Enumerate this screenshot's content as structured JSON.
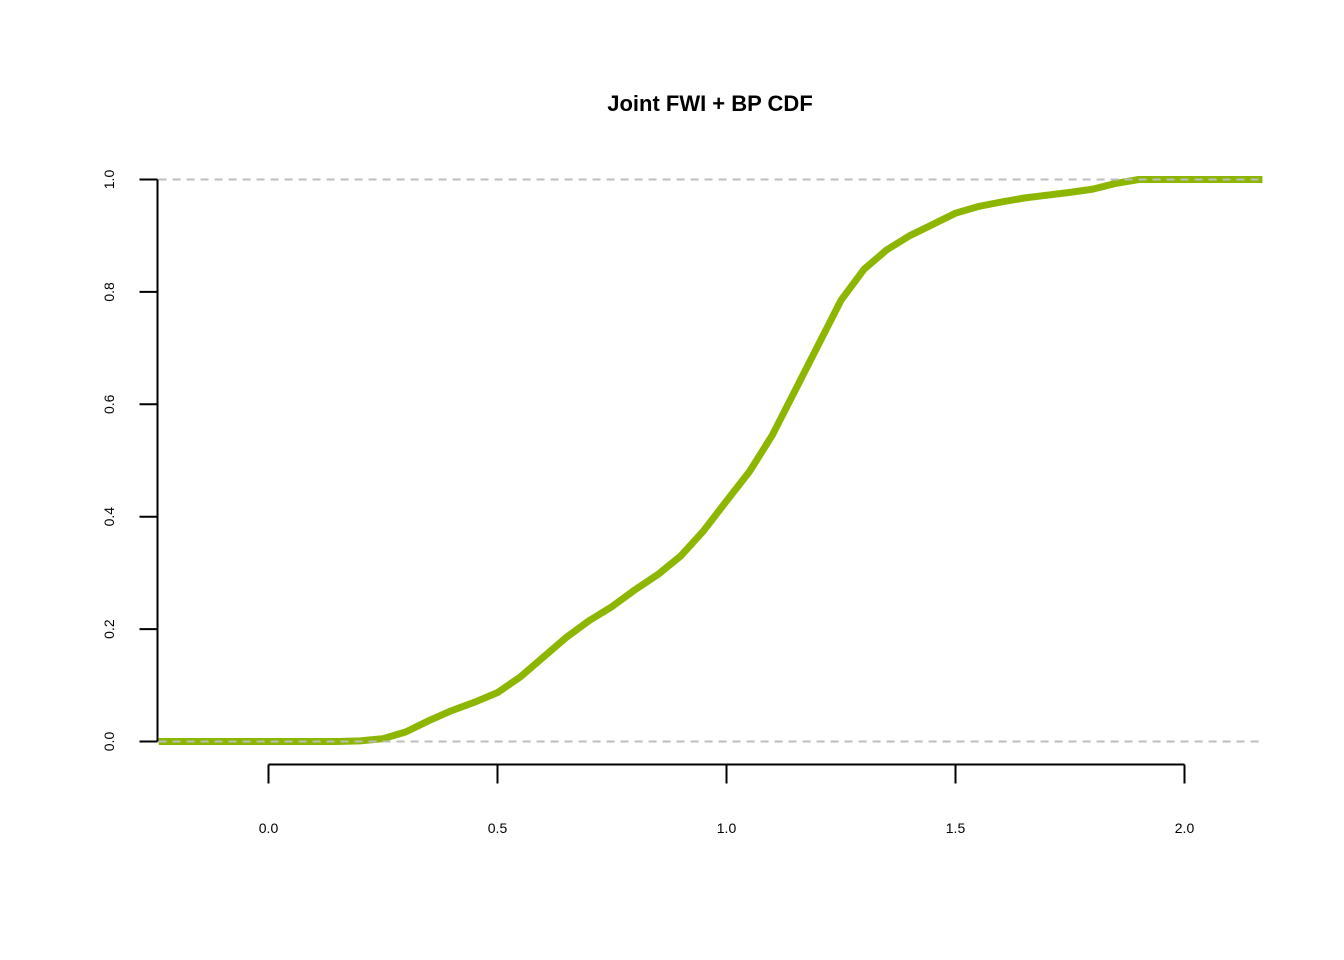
{
  "chart_data": {
    "type": "line",
    "title": "Joint FWI + BP CDF",
    "xlabel": "",
    "ylabel": "",
    "xlim": [
      -0.24,
      2.17
    ],
    "ylim": [
      0.0,
      1.0
    ],
    "x_ticks": [
      "0.0",
      "0.5",
      "1.0",
      "1.5",
      "2.0"
    ],
    "y_ticks": [
      "0.0",
      "0.2",
      "0.4",
      "0.6",
      "0.8",
      "1.0"
    ],
    "reference_lines_y": [
      0.0,
      1.0
    ],
    "grid": false,
    "line_color": "#8db600",
    "reference_color": "#bdbdbd",
    "series": [
      {
        "x": [
          -0.24,
          0.0,
          0.15,
          0.2,
          0.25,
          0.3,
          0.35,
          0.4,
          0.45,
          0.5,
          0.55,
          0.6,
          0.65,
          0.7,
          0.75,
          0.8,
          0.85,
          0.9,
          0.95,
          1.0,
          1.05,
          1.1,
          1.15,
          1.2,
          1.25,
          1.3,
          1.35,
          1.4,
          1.45,
          1.5,
          1.55,
          1.6,
          1.65,
          1.7,
          1.75,
          1.8,
          1.85,
          1.9,
          1.95,
          2.17
        ],
        "y": [
          0.0,
          0.0,
          0.0,
          0.001,
          0.005,
          0.017,
          0.037,
          0.055,
          0.07,
          0.087,
          0.115,
          0.15,
          0.185,
          0.215,
          0.24,
          0.27,
          0.297,
          0.33,
          0.375,
          0.428,
          0.48,
          0.545,
          0.625,
          0.705,
          0.785,
          0.84,
          0.875,
          0.9,
          0.92,
          0.94,
          0.952,
          0.96,
          0.967,
          0.972,
          0.977,
          0.983,
          0.993,
          1.0,
          1.0,
          1.0
        ]
      }
    ]
  }
}
